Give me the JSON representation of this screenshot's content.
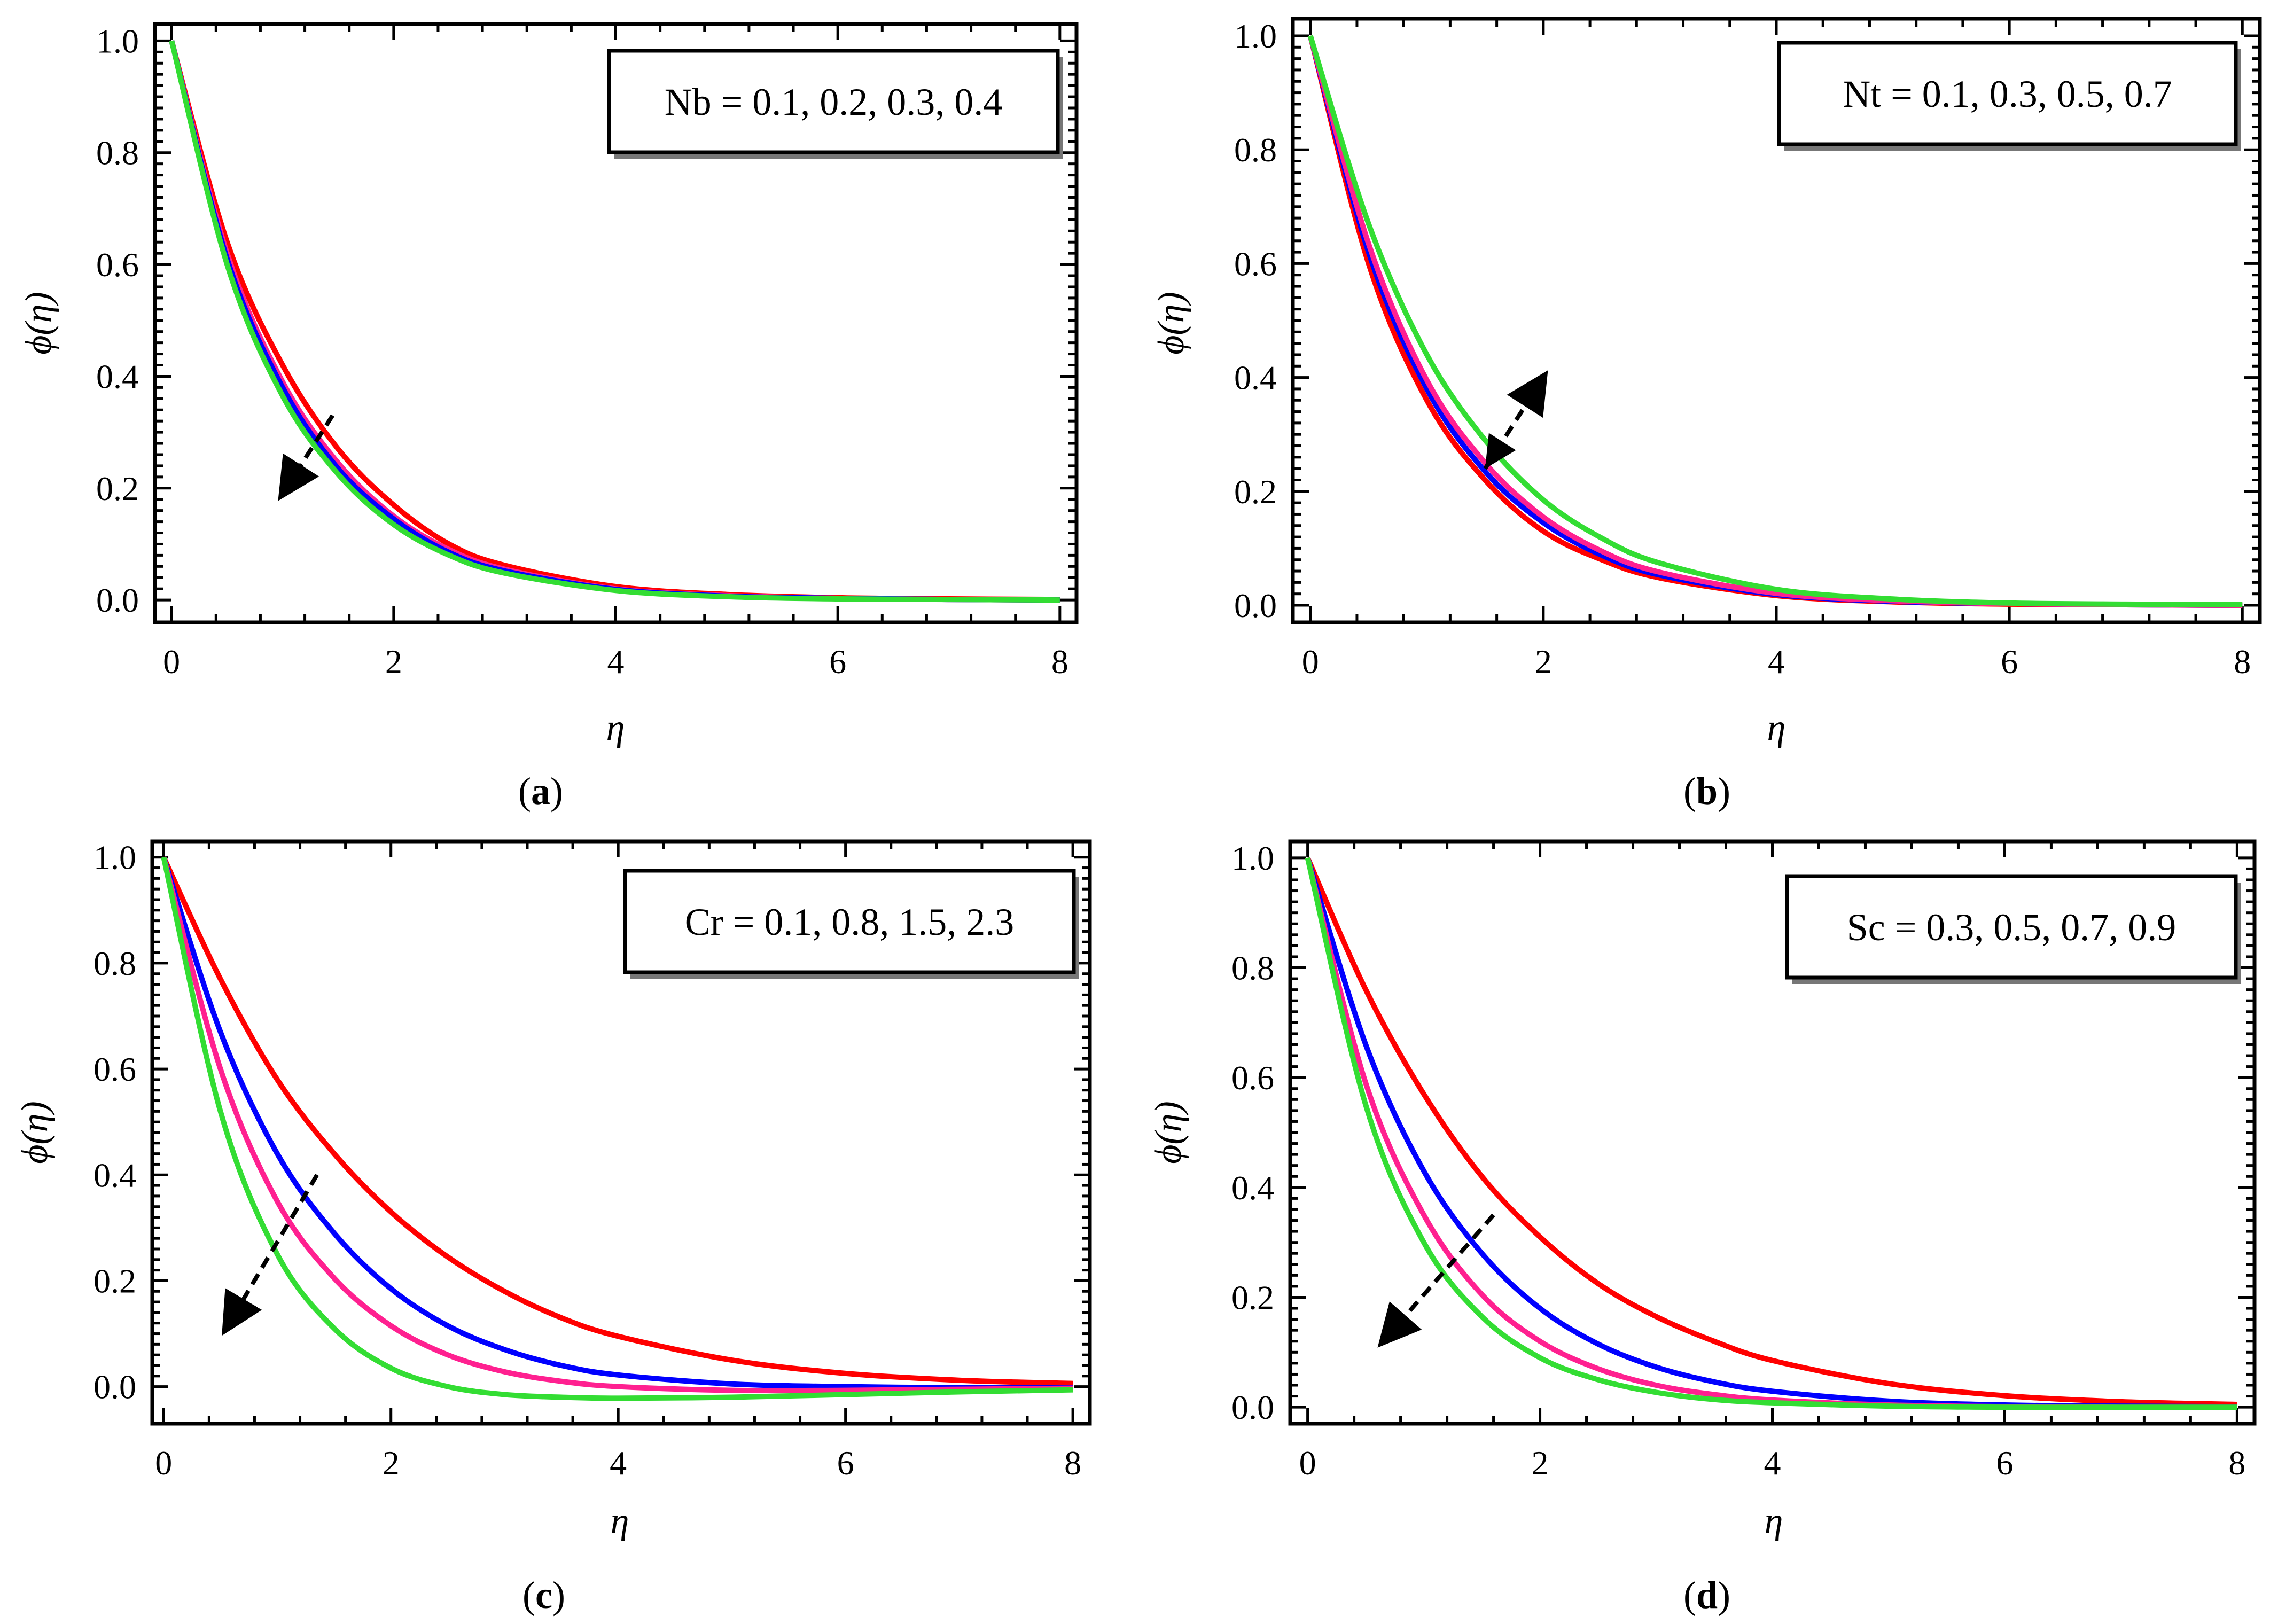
{
  "chart_data": [
    {
      "panel": "a",
      "type": "line",
      "caption_letter": "a",
      "caption_open": "(",
      "caption_close": ")",
      "legend": "Nb = 0.1, 0.2, 0.3, 0.4",
      "xlabel": "η",
      "ylabel": "ϕ(η)",
      "xlim": [
        -0.15,
        8.15
      ],
      "ylim": [
        -0.04,
        1.03
      ],
      "xticks": [
        "0",
        "2",
        "4",
        "6",
        "8"
      ],
      "yticks": [
        "0.0",
        "0.2",
        "0.4",
        "0.6",
        "0.8",
        "1.0"
      ],
      "arrow": {
        "from": [
          1.45,
          0.33
        ],
        "to": [
          1.0,
          0.19
        ],
        "double": false
      },
      "series": [
        {
          "name": "Nb = 0.1",
          "color": "#ff0000",
          "x": [
            0,
            0.5,
            1,
            1.5,
            2,
            2.5,
            3,
            4,
            5,
            6,
            7,
            8
          ],
          "y": [
            1.0,
            0.64,
            0.42,
            0.27,
            0.17,
            0.1,
            0.062,
            0.024,
            0.01,
            0.004,
            0.002,
            0.001
          ]
        },
        {
          "name": "Nb = 0.2",
          "color": "#ff2090",
          "x": [
            0,
            0.5,
            1,
            1.5,
            2,
            2.5,
            3,
            4,
            5,
            6,
            7,
            8
          ],
          "y": [
            1.0,
            0.62,
            0.39,
            0.245,
            0.15,
            0.09,
            0.055,
            0.02,
            0.008,
            0.003,
            0.001,
            0.0
          ]
        },
        {
          "name": "Nb = 0.3",
          "color": "#0000ff",
          "x": [
            0,
            0.5,
            1,
            1.5,
            2,
            2.5,
            3,
            4,
            5,
            6,
            7,
            8
          ],
          "y": [
            1.0,
            0.61,
            0.38,
            0.235,
            0.145,
            0.085,
            0.052,
            0.019,
            0.007,
            0.003,
            0.001,
            0.0
          ]
        },
        {
          "name": "Nb = 0.4",
          "color": "#33dd33",
          "x": [
            0,
            0.5,
            1,
            1.5,
            2,
            2.5,
            3,
            4,
            5,
            6,
            7,
            8
          ],
          "y": [
            1.0,
            0.6,
            0.365,
            0.225,
            0.135,
            0.08,
            0.048,
            0.017,
            0.006,
            0.002,
            0.001,
            0.0
          ]
        }
      ]
    },
    {
      "panel": "b",
      "type": "line",
      "caption_letter": "b",
      "caption_open": "(",
      "caption_close": ")",
      "legend": "Nt = 0.1, 0.3, 0.5, 0.7",
      "xlabel": "η",
      "ylabel": "ϕ(η)",
      "xlim": [
        -0.15,
        8.15
      ],
      "ylim": [
        -0.03,
        1.03
      ],
      "xticks": [
        "0",
        "2",
        "4",
        "6",
        "8"
      ],
      "yticks": [
        "0.0",
        "0.2",
        "0.4",
        "0.6",
        "0.8",
        "1.0"
      ],
      "arrow": {
        "from": [
          1.5,
          0.24
        ],
        "to": [
          2.0,
          0.4
        ],
        "double": true
      },
      "series": [
        {
          "name": "Nt = 0.1",
          "color": "#ff0000",
          "x": [
            0,
            0.5,
            1,
            1.5,
            2,
            2.5,
            3,
            4,
            5,
            6,
            7,
            8
          ],
          "y": [
            1.0,
            0.6,
            0.36,
            0.22,
            0.13,
            0.08,
            0.048,
            0.017,
            0.006,
            0.002,
            0.001,
            0.0
          ]
        },
        {
          "name": "Nt = 0.3",
          "color": "#0000ff",
          "x": [
            0,
            0.5,
            1,
            1.5,
            2,
            2.5,
            3,
            4,
            5,
            6,
            7,
            8
          ],
          "y": [
            1.0,
            0.62,
            0.38,
            0.235,
            0.145,
            0.088,
            0.053,
            0.019,
            0.007,
            0.003,
            0.001,
            0.0
          ]
        },
        {
          "name": "Nt = 0.5",
          "color": "#ff2090",
          "x": [
            0,
            0.5,
            1,
            1.5,
            2,
            2.5,
            3,
            4,
            5,
            6,
            7,
            8
          ],
          "y": [
            1.0,
            0.635,
            0.395,
            0.25,
            0.155,
            0.095,
            0.058,
            0.021,
            0.008,
            0.003,
            0.001,
            0.0
          ]
        },
        {
          "name": "Nt = 0.7",
          "color": "#33dd33",
          "x": [
            0,
            0.5,
            1,
            1.5,
            2,
            2.5,
            3,
            4,
            5,
            6,
            7,
            8
          ],
          "y": [
            1.0,
            0.67,
            0.44,
            0.29,
            0.185,
            0.118,
            0.074,
            0.028,
            0.011,
            0.004,
            0.002,
            0.001
          ]
        }
      ]
    },
    {
      "panel": "c",
      "type": "line",
      "caption_letter": "c",
      "caption_open": "(",
      "caption_close": ")",
      "legend": "Cr = 0.1, 0.8, 1.5, 2.3",
      "xlabel": "η",
      "ylabel": "ϕ(η)",
      "xlim": [
        -0.1,
        8.15
      ],
      "ylim": [
        -0.07,
        1.03
      ],
      "xticks": [
        "0",
        "2",
        "4",
        "6",
        "8"
      ],
      "yticks": [
        "0.0",
        "0.2",
        "0.4",
        "0.6",
        "0.8",
        "1.0"
      ],
      "arrow": {
        "from": [
          1.35,
          0.4
        ],
        "to": [
          0.55,
          0.11
        ],
        "double": false
      },
      "series": [
        {
          "name": "Cr = 0.1",
          "color": "#ff0000",
          "x": [
            0,
            0.5,
            1,
            1.5,
            2,
            2.5,
            3,
            3.5,
            4,
            5,
            6,
            7,
            8
          ],
          "y": [
            1.0,
            0.77,
            0.58,
            0.44,
            0.33,
            0.245,
            0.18,
            0.13,
            0.095,
            0.05,
            0.025,
            0.012,
            0.006
          ]
        },
        {
          "name": "Cr = 0.8",
          "color": "#0000ff",
          "x": [
            0,
            0.5,
            1,
            1.5,
            2,
            2.5,
            3,
            3.5,
            4,
            5,
            6,
            7,
            8
          ],
          "y": [
            1.0,
            0.67,
            0.44,
            0.29,
            0.185,
            0.115,
            0.07,
            0.04,
            0.022,
            0.005,
            0.0,
            -0.002,
            -0.002
          ]
        },
        {
          "name": "Cr = 1.5",
          "color": "#ff2090",
          "x": [
            0,
            0.5,
            1,
            1.5,
            2,
            2.5,
            3,
            3.5,
            4,
            5,
            6,
            7,
            8
          ],
          "y": [
            1.0,
            0.6,
            0.35,
            0.205,
            0.115,
            0.06,
            0.028,
            0.01,
            0.0,
            -0.007,
            -0.007,
            -0.005,
            -0.003
          ]
        },
        {
          "name": "Cr = 2.3",
          "color": "#33dd33",
          "x": [
            0,
            0.5,
            1,
            1.5,
            2,
            2.5,
            3,
            3.5,
            4,
            5,
            6,
            7,
            8
          ],
          "y": [
            1.0,
            0.52,
            0.25,
            0.11,
            0.035,
            0.0,
            -0.015,
            -0.02,
            -0.022,
            -0.02,
            -0.015,
            -0.01,
            -0.006
          ]
        }
      ]
    },
    {
      "panel": "d",
      "type": "line",
      "caption_letter": "d",
      "caption_open": "(",
      "caption_close": ")",
      "legend": "Sc = 0.3, 0.5, 0.7, 0.9",
      "xlabel": "η",
      "ylabel": "ϕ(η)",
      "xlim": [
        -0.15,
        8.15
      ],
      "ylim": [
        -0.03,
        1.03
      ],
      "xticks": [
        "0",
        "2",
        "4",
        "6",
        "8"
      ],
      "yticks": [
        "0.0",
        "0.2",
        "0.4",
        "0.6",
        "0.8",
        "1.0"
      ],
      "arrow": {
        "from": [
          1.6,
          0.35
        ],
        "to": [
          0.65,
          0.12
        ],
        "double": false
      },
      "series": [
        {
          "name": "Sc = 0.3",
          "color": "#ff0000",
          "x": [
            0,
            0.5,
            1,
            1.5,
            2,
            2.5,
            3,
            3.5,
            4,
            5,
            6,
            7,
            8
          ],
          "y": [
            1.0,
            0.76,
            0.57,
            0.42,
            0.31,
            0.225,
            0.165,
            0.12,
            0.085,
            0.043,
            0.021,
            0.01,
            0.005
          ]
        },
        {
          "name": "Sc = 0.5",
          "color": "#0000ff",
          "x": [
            0,
            0.5,
            1,
            1.5,
            2,
            2.5,
            3,
            3.5,
            4,
            5,
            6,
            7,
            8
          ],
          "y": [
            1.0,
            0.66,
            0.43,
            0.28,
            0.18,
            0.115,
            0.073,
            0.046,
            0.029,
            0.011,
            0.004,
            0.002,
            0.001
          ]
        },
        {
          "name": "Sc = 0.7",
          "color": "#ff2090",
          "x": [
            0,
            0.5,
            1,
            1.5,
            2,
            2.5,
            3,
            3.5,
            4,
            5,
            6,
            7,
            8
          ],
          "y": [
            1.0,
            0.59,
            0.35,
            0.205,
            0.12,
            0.07,
            0.04,
            0.023,
            0.013,
            0.004,
            0.001,
            0.0,
            0.0
          ]
        },
        {
          "name": "Sc = 0.9",
          "color": "#33dd33",
          "x": [
            0,
            0.5,
            1,
            1.5,
            2,
            2.5,
            3,
            3.5,
            4,
            5,
            6,
            7,
            8
          ],
          "y": [
            1.0,
            0.55,
            0.3,
            0.165,
            0.09,
            0.05,
            0.027,
            0.014,
            0.008,
            0.002,
            0.0,
            0.0,
            0.0
          ]
        }
      ]
    }
  ]
}
